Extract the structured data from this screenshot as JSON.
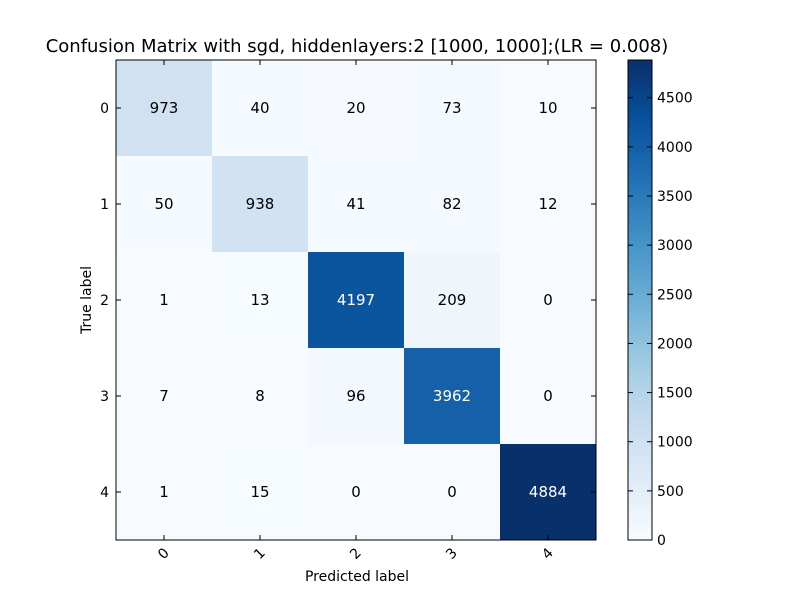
{
  "chart_data": {
    "type": "heatmap",
    "title": "Confusion Matrix with sgd, hiddenlayers:2 [1000, 1000];(LR = 0.008)",
    "xlabel": "Predicted label",
    "ylabel": "True label",
    "x_categories": [
      "0",
      "1",
      "2",
      "3",
      "4"
    ],
    "y_categories": [
      "0",
      "1",
      "2",
      "3",
      "4"
    ],
    "values": [
      [
        973,
        40,
        20,
        73,
        10
      ],
      [
        50,
        938,
        41,
        82,
        12
      ],
      [
        1,
        13,
        4197,
        209,
        0
      ],
      [
        7,
        8,
        96,
        3962,
        0
      ],
      [
        1,
        15,
        0,
        0,
        4884
      ]
    ],
    "colormap": "Blues",
    "color_range": [
      0,
      4884
    ],
    "colorbar_ticks": [
      0,
      500,
      1000,
      1500,
      2000,
      2500,
      3000,
      3500,
      4000,
      4500
    ],
    "x_tick_rotation_deg": 45
  }
}
